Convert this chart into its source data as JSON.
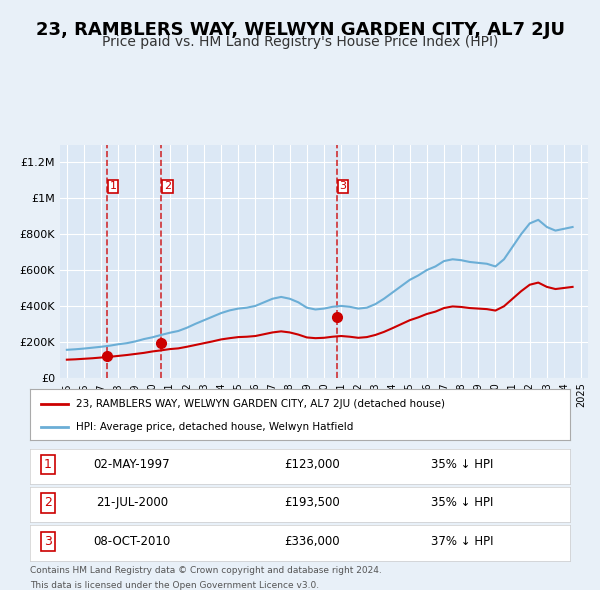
{
  "title": "23, RAMBLERS WAY, WELWYN GARDEN CITY, AL7 2JU",
  "subtitle": "Price paid vs. HM Land Registry's House Price Index (HPI)",
  "title_fontsize": 13,
  "subtitle_fontsize": 10,
  "background_color": "#e8f0f8",
  "plot_bg_color": "#dce8f5",
  "ylim": [
    0,
    1300000
  ],
  "yticks": [
    0,
    200000,
    400000,
    600000,
    800000,
    1000000,
    1200000
  ],
  "ytick_labels": [
    "£0",
    "£200K",
    "£400K",
    "£600K",
    "£800K",
    "£1M",
    "£1.2M"
  ],
  "legend_label_red": "23, RAMBLERS WAY, WELWYN GARDEN CITY, AL7 2JU (detached house)",
  "legend_label_blue": "HPI: Average price, detached house, Welwyn Hatfield",
  "sale_dates": [
    "1997-05-02",
    "2000-07-21",
    "2010-10-08"
  ],
  "sale_prices": [
    123000,
    193500,
    336000
  ],
  "sale_labels": [
    "1",
    "2",
    "3"
  ],
  "sale_label_display": [
    "02-MAY-1997",
    "21-JUL-2000",
    "08-OCT-2010"
  ],
  "sale_amounts": [
    "£123,000",
    "£193,500",
    "£336,000"
  ],
  "sale_hpi_text": [
    "35% ↓ HPI",
    "35% ↓ HPI",
    "37% ↓ HPI"
  ],
  "footnote1": "Contains HM Land Registry data © Crown copyright and database right 2024.",
  "footnote2": "This data is licensed under the Open Government Licence v3.0.",
  "hpi_x": [
    1995.0,
    1995.5,
    1996.0,
    1996.5,
    1997.0,
    1997.5,
    1998.0,
    1998.5,
    1999.0,
    1999.5,
    2000.0,
    2000.5,
    2001.0,
    2001.5,
    2002.0,
    2002.5,
    2003.0,
    2003.5,
    2004.0,
    2004.5,
    2005.0,
    2005.5,
    2006.0,
    2006.5,
    2007.0,
    2007.5,
    2008.0,
    2008.5,
    2009.0,
    2009.5,
    2010.0,
    2010.5,
    2011.0,
    2011.5,
    2012.0,
    2012.5,
    2013.0,
    2013.5,
    2014.0,
    2014.5,
    2015.0,
    2015.5,
    2016.0,
    2016.5,
    2017.0,
    2017.5,
    2018.0,
    2018.5,
    2019.0,
    2019.5,
    2020.0,
    2020.5,
    2021.0,
    2021.5,
    2022.0,
    2022.5,
    2023.0,
    2023.5,
    2024.0,
    2024.5
  ],
  "hpi_y": [
    155000,
    158000,
    162000,
    167000,
    172000,
    178000,
    186000,
    192000,
    202000,
    215000,
    225000,
    238000,
    250000,
    260000,
    278000,
    300000,
    320000,
    340000,
    360000,
    375000,
    385000,
    390000,
    400000,
    420000,
    440000,
    450000,
    440000,
    420000,
    390000,
    380000,
    385000,
    395000,
    400000,
    395000,
    385000,
    390000,
    410000,
    440000,
    475000,
    510000,
    545000,
    570000,
    600000,
    620000,
    650000,
    660000,
    655000,
    645000,
    640000,
    635000,
    620000,
    660000,
    730000,
    800000,
    860000,
    880000,
    840000,
    820000,
    830000,
    840000
  ],
  "red_x": [
    1995.0,
    1995.5,
    1996.0,
    1996.5,
    1997.0,
    1997.5,
    1998.0,
    1998.5,
    1999.0,
    1999.5,
    2000.0,
    2000.5,
    2001.0,
    2001.5,
    2002.0,
    2002.5,
    2003.0,
    2003.5,
    2004.0,
    2004.5,
    2005.0,
    2005.5,
    2006.0,
    2006.5,
    2007.0,
    2007.5,
    2008.0,
    2008.5,
    2009.0,
    2009.5,
    2010.0,
    2010.5,
    2011.0,
    2011.5,
    2012.0,
    2012.5,
    2013.0,
    2013.5,
    2014.0,
    2014.5,
    2015.0,
    2015.5,
    2016.0,
    2016.5,
    2017.0,
    2017.5,
    2018.0,
    2018.5,
    2019.0,
    2019.5,
    2020.0,
    2020.5,
    2021.0,
    2021.5,
    2022.0,
    2022.5,
    2023.0,
    2023.5,
    2024.0,
    2024.5
  ],
  "red_y": [
    100000,
    102000,
    105000,
    108000,
    112000,
    116000,
    121000,
    126000,
    132000,
    138000,
    146000,
    152000,
    159000,
    163000,
    172000,
    182000,
    192000,
    202000,
    213000,
    220000,
    226000,
    228000,
    232000,
    242000,
    252000,
    258000,
    252000,
    240000,
    224000,
    220000,
    222000,
    228000,
    232000,
    228000,
    222000,
    226000,
    238000,
    255000,
    276000,
    298000,
    320000,
    336000,
    355000,
    368000,
    388000,
    397000,
    394000,
    388000,
    385000,
    382000,
    374000,
    398000,
    440000,
    482000,
    518000,
    530000,
    506000,
    494000,
    500000,
    506000
  ],
  "xtick_years": [
    1995,
    1996,
    1997,
    1998,
    1999,
    2000,
    2001,
    2002,
    2003,
    2004,
    2005,
    2006,
    2007,
    2008,
    2009,
    2010,
    2011,
    2012,
    2013,
    2014,
    2015,
    2016,
    2017,
    2018,
    2019,
    2020,
    2021,
    2022,
    2023,
    2024,
    2025
  ],
  "xlim": [
    1994.6,
    2025.4
  ]
}
